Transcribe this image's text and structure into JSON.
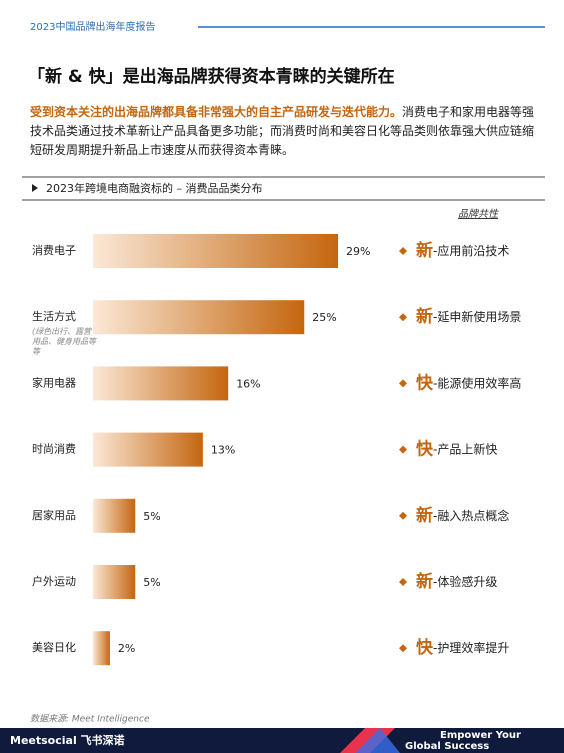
{
  "header": {
    "report": "2023中国品牌出海年度报告"
  },
  "title": "「新 & 快」是出海品牌获得资本青睐的关键所在",
  "intro": {
    "highlight": "受到资本关注的出海品牌都具备非常强大的自主产品研发与迭代能力。",
    "body": "消费电子和家用电器等强技术品类通过技术革新让产品具备更多功能；而消费时尚和美容日化等品类则依靠强大供应链缩短研发周期提升新品上市速度从而获得资本青睐。"
  },
  "chart_data": {
    "type": "bar",
    "orientation": "horizontal",
    "title": "2023年跨境电商融资标的 – 消费品品类分布",
    "categories": [
      "消费电子",
      "生活方式",
      "家用电器",
      "时尚消费",
      "居家用品",
      "户外运动",
      "美容日化"
    ],
    "category_note": "(绿色出行、露营用品、健身用品等等",
    "values": [
      29,
      25,
      16,
      13,
      5,
      5,
      2
    ],
    "value_labels": [
      "29%",
      "25%",
      "16%",
      "13%",
      "5%",
      "5%",
      "2%"
    ],
    "color": "#c4660f"
  },
  "traits": {
    "title": "品牌共性",
    "items": [
      {
        "mark": "新",
        "text": "-应用前沿技术"
      },
      {
        "mark": "新",
        "text": "-延申新使用场景"
      },
      {
        "mark": "快",
        "text": "-能源使用效率高"
      },
      {
        "mark": "快",
        "text": "-产品上新快"
      },
      {
        "mark": "新",
        "text": "-融入热点概念"
      },
      {
        "mark": "新",
        "text": "-体验感升级"
      },
      {
        "mark": "快",
        "text": "-护理效率提升"
      }
    ]
  },
  "source": "数据来源: Meet Intelligence",
  "footer": {
    "brand": "Meetsocial 飞书深诺",
    "slogan_1": "Empower Your",
    "slogan_2": "Global Success"
  }
}
